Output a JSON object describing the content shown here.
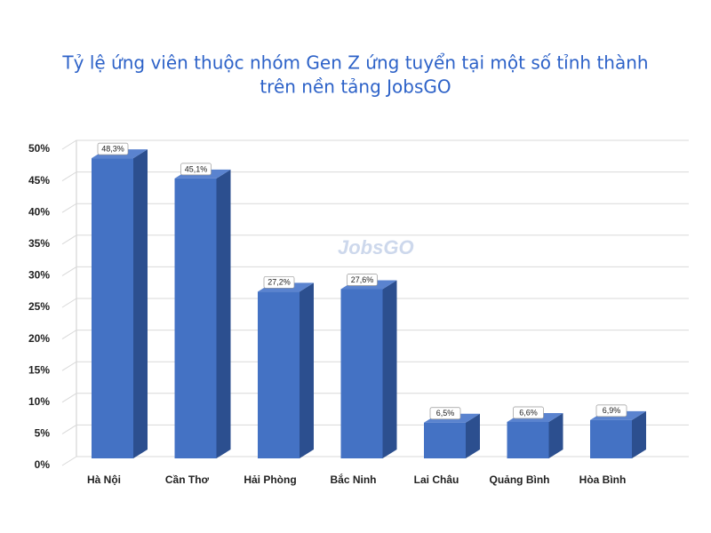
{
  "chart_data": {
    "type": "bar3d",
    "title": [
      "Tỷ lệ ứng viên thuộc nhóm Gen Z ứng tuyển tại một số tỉnh thành",
      "trên nền tảng JobsGO"
    ],
    "watermark": "JobsGO",
    "categories": [
      "Hà Nội",
      "Cần Thơ",
      "Hải Phòng",
      "Bắc Ninh",
      "Lai Châu",
      "Quảng Bình",
      "Hòa Bình"
    ],
    "values": [
      48.3,
      45.1,
      27.2,
      27.6,
      6.5,
      6.6,
      6.9
    ],
    "value_labels": [
      "48,3%",
      "45,1%",
      "27,2%",
      "27,6%",
      "6,5%",
      "6,6%",
      "6,9%"
    ],
    "color": "#4472c4",
    "ylim": [
      0,
      50
    ],
    "yticks": [
      {
        "value": 0,
        "label": "0%"
      },
      {
        "value": 5,
        "label": "5%"
      },
      {
        "value": 10,
        "label": "10%"
      },
      {
        "value": 15,
        "label": "15%"
      },
      {
        "value": 20,
        "label": "20%"
      },
      {
        "value": 25,
        "label": "25%"
      },
      {
        "value": 30,
        "label": "30%"
      },
      {
        "value": 35,
        "label": "35%"
      },
      {
        "value": 40,
        "label": "40%"
      },
      {
        "value": 45,
        "label": "45%"
      },
      {
        "value": 50,
        "label": "50%"
      }
    ],
    "grid": true
  }
}
